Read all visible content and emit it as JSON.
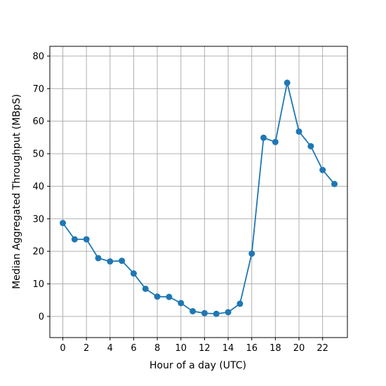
{
  "chart_data": {
    "type": "line",
    "title": "",
    "xlabel": "Hour of a day (UTC)",
    "ylabel": "Median Aggregated Throughput (MBpS)",
    "xlim": [
      -1.1,
      24.1
    ],
    "ylim": [
      -6.5,
      83
    ],
    "x_ticks": [
      0,
      2,
      4,
      6,
      8,
      10,
      12,
      14,
      16,
      18,
      20,
      22
    ],
    "y_ticks": [
      0,
      10,
      20,
      30,
      40,
      50,
      60,
      70,
      80
    ],
    "grid": true,
    "legend": "none",
    "x": [
      0,
      1,
      2,
      3,
      4,
      5,
      6,
      7,
      8,
      9,
      10,
      11,
      12,
      13,
      14,
      15,
      16,
      17,
      18,
      19,
      20,
      21,
      22,
      23
    ],
    "series": [
      {
        "values": [
          28.7,
          23.7,
          23.7,
          17.9,
          16.9,
          17.1,
          13.2,
          8.5,
          6.1,
          6.0,
          4.1,
          1.6,
          1.0,
          0.8,
          1.3,
          3.9,
          19.3,
          54.9,
          53.6,
          71.8,
          56.8,
          52.3,
          45.0,
          40.7
        ],
        "color": "#1f77b4",
        "marker": "circle"
      }
    ],
    "colors": {
      "line": "#1f77b4",
      "grid": "#b0b0b0",
      "axes": "#000000"
    }
  }
}
